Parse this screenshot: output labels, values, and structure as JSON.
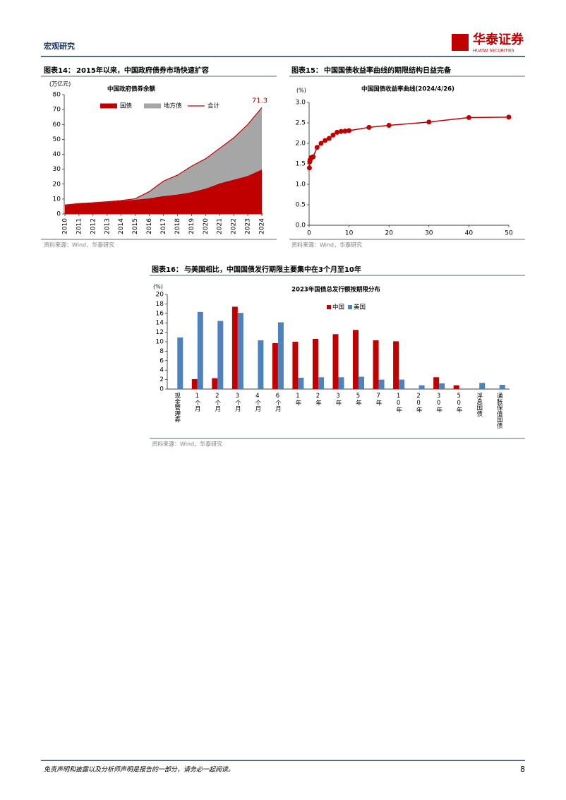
{
  "header": {
    "section": "宏观研究",
    "brand": "华泰证券",
    "brand_en": "HUATAI SECURITIES"
  },
  "figures": [
    {
      "caption_label": "图表14：",
      "caption": "2015年以来，中国政府债券市场快速扩容",
      "source": "资料来源：Wind，华泰研究"
    },
    {
      "caption_label": "图表15：",
      "caption": "中国国债收益率曲线的期限结构日益完备",
      "source": "资料来源：Wind，华泰研究"
    },
    {
      "caption_label": "图表16：",
      "caption": "与美国相比，中国国债发行期限主要集中在3个月至10年",
      "source": "资料来源：Wind，华泰研究"
    }
  ],
  "chart_data": [
    {
      "type": "area",
      "title": "中国政府债券余额",
      "y_label": "(万亿元)",
      "stacked": true,
      "categories": [
        "2010",
        "2011",
        "2012",
        "2013",
        "2014",
        "2015",
        "2016",
        "2017",
        "2018",
        "2019",
        "2020",
        "2021",
        "2022",
        "2023",
        "2024"
      ],
      "series": [
        {
          "name": "国债",
          "color": "#c00000",
          "type": "area",
          "values": [
            6,
            6.8,
            7.3,
            8,
            8.7,
            9.6,
            10.5,
            12,
            13,
            14.6,
            17,
            20.5,
            23,
            25.5,
            29.8
          ]
        },
        {
          "name": "地方债",
          "color": "#a6a6a6",
          "type": "area",
          "values": [
            0,
            0.2,
            0.2,
            0.2,
            0.3,
            0.6,
            4.5,
            10,
            13,
            17.4,
            20,
            23.5,
            28,
            34.5,
            41.5
          ]
        },
        {
          "name": "合计",
          "color": "#c00000",
          "type": "line",
          "values": [
            6,
            7,
            7.5,
            8.2,
            9,
            10.2,
            15,
            22,
            26,
            32,
            37,
            44,
            51,
            60,
            71.3
          ]
        }
      ],
      "ylim": [
        0,
        80
      ],
      "yticks": [
        0,
        10,
        20,
        30,
        40,
        50,
        60,
        70,
        80
      ]
    },
    {
      "type": "line",
      "title": "中国国债收益率曲线(2024/4/26)",
      "y_label": "(%)",
      "color": "#c00000",
      "markers": true,
      "x": [
        0.08,
        0.17,
        0.25,
        0.5,
        0.75,
        1,
        2,
        3,
        4,
        5,
        6,
        7,
        8,
        9,
        10,
        15,
        20,
        30,
        40,
        50
      ],
      "values": [
        1.4,
        1.55,
        1.6,
        1.65,
        1.66,
        1.67,
        1.9,
        2.0,
        2.07,
        2.12,
        2.2,
        2.27,
        2.29,
        2.3,
        2.31,
        2.39,
        2.44,
        2.52,
        2.63,
        2.64
      ],
      "xlim": [
        0,
        50
      ],
      "xticks": [
        0,
        10,
        20,
        30,
        40,
        50
      ],
      "ylim": [
        0,
        3
      ],
      "yticks": [
        {
          "value": 0,
          "label": "0.0"
        },
        {
          "value": 0.5,
          "label": "0.5"
        },
        {
          "value": 1,
          "label": "1.0"
        },
        {
          "value": 1.5,
          "label": "1.5"
        },
        {
          "value": 2,
          "label": "2.0"
        },
        {
          "value": 2.5,
          "label": "2.5"
        },
        {
          "value": 3,
          "label": "3.0"
        }
      ]
    },
    {
      "type": "bar",
      "title": "2023年国债总发行额按期限分布",
      "y_label": "(%)",
      "categories": [
        "现金管理券",
        "1个月",
        "2个月",
        "3个月",
        "4个月",
        "6个月",
        "1年",
        "2年",
        "3年",
        "5年",
        "7年",
        "10年",
        "20年",
        "30年",
        "50年",
        "浮息国债",
        "通胀保值国债"
      ],
      "series": [
        {
          "name": "中国",
          "color": "#c00000",
          "values": [
            null,
            2.1,
            2.3,
            17.4,
            null,
            9.7,
            10,
            10.6,
            11.6,
            12.5,
            10.3,
            10.1,
            null,
            2.5,
            0.8,
            null,
            null
          ]
        },
        {
          "name": "美国",
          "color": "#4f81bd",
          "values": [
            10.9,
            16.3,
            14.4,
            16.1,
            10.3,
            14.1,
            2.4,
            2.5,
            2.5,
            2.6,
            2.0,
            2.0,
            0.8,
            1.2,
            null,
            1.3,
            0.9
          ]
        }
      ],
      "ylim": [
        0,
        20
      ],
      "yticks": [
        0,
        2,
        4,
        6,
        8,
        10,
        12,
        14,
        16,
        18,
        20
      ]
    }
  ],
  "footer": {
    "disclaimer": "免责声明和披露以及分析师声明是报告的一部分，请务必一起阅读。",
    "page": "8"
  }
}
